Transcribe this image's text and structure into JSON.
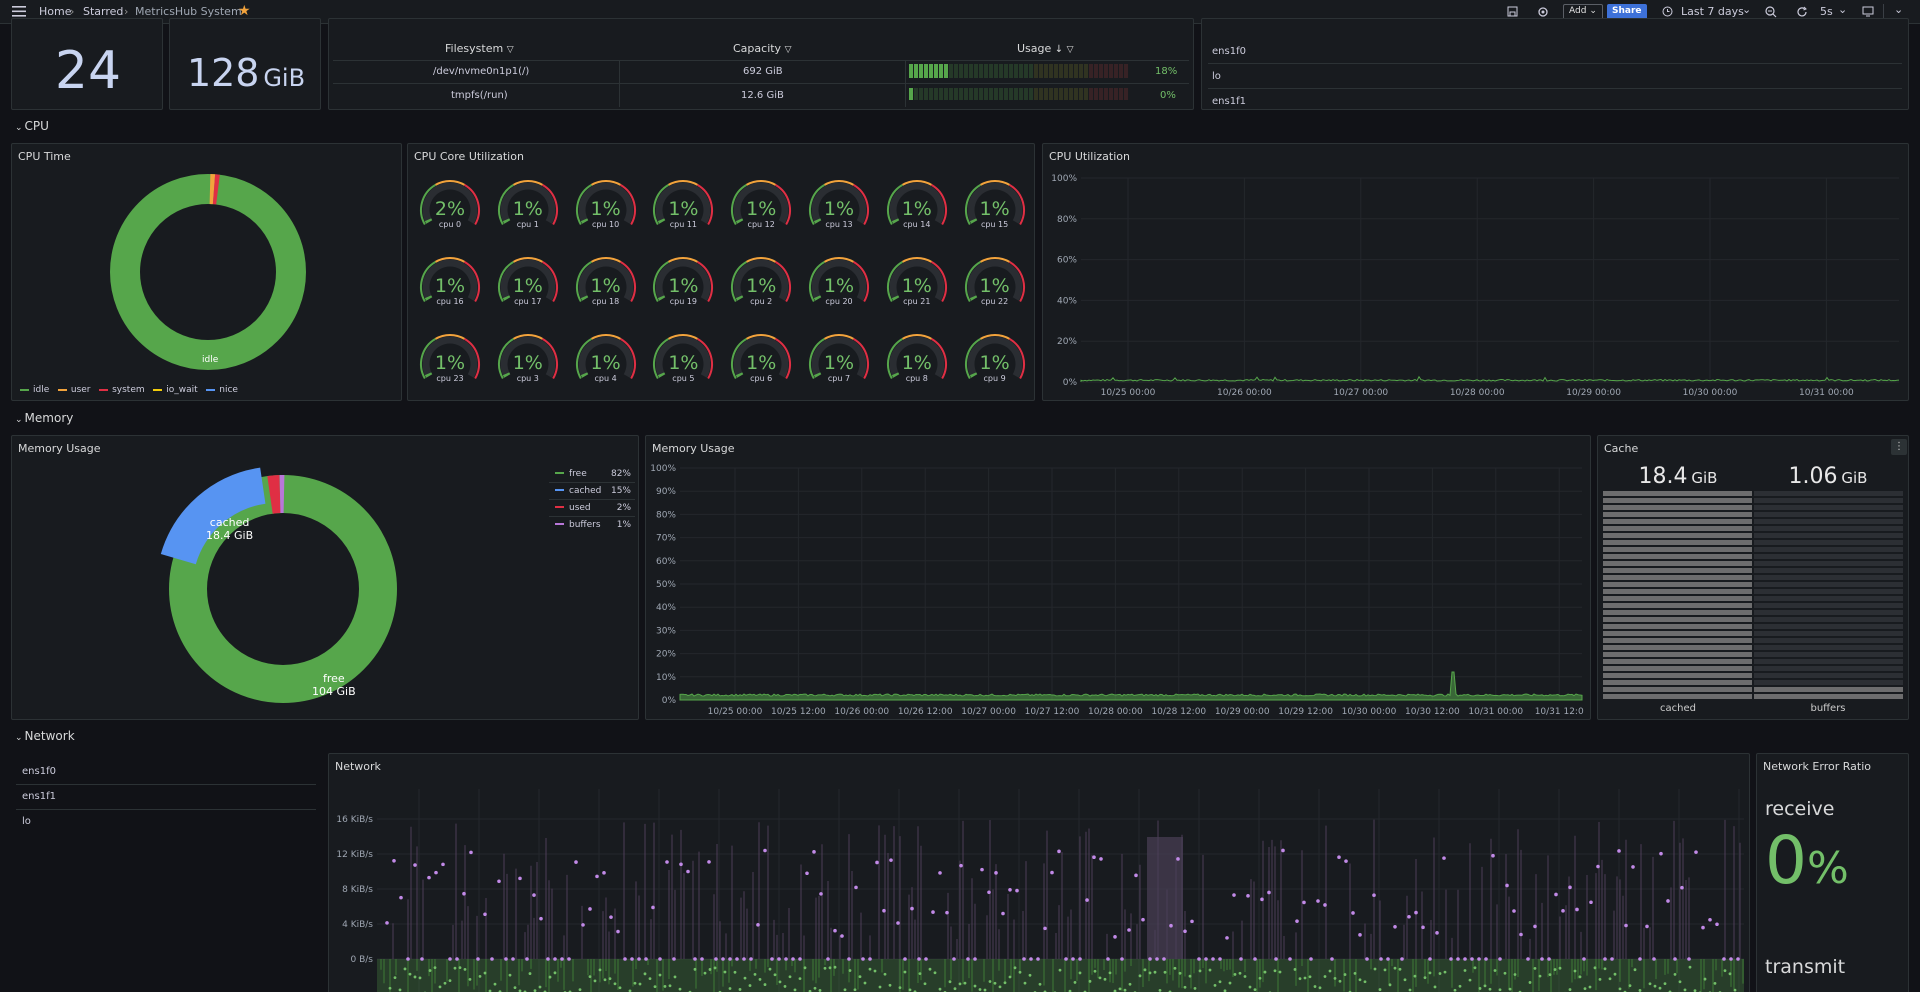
{
  "topbar": {
    "breadcrumb": [
      "Home",
      "Starred",
      "MetricsHub System"
    ],
    "add_label": "Add",
    "share_label": "Share",
    "time_range": "Last 7 days",
    "refresh": "5s"
  },
  "stats": {
    "cpu_count": "24",
    "ram_value": "128",
    "ram_unit": "GiB"
  },
  "filesystem": {
    "headers": [
      "Filesystem",
      "Capacity",
      "Usage"
    ],
    "rows": [
      {
        "fs": "/dev/nvme0n1p1(/)",
        "capacity": "692 GiB",
        "usage": "18%",
        "usage_frac": 0.18
      },
      {
        "fs": "tmpfs(/run)",
        "capacity": "12.6 GiB",
        "usage": "0%",
        "usage_frac": 0.0
      }
    ]
  },
  "top_interfaces": [
    "ens1f0",
    "lo",
    "ens1f1"
  ],
  "rows": {
    "cpu": "CPU",
    "memory": "Memory",
    "network": "Network"
  },
  "cpu_time": {
    "title": "CPU Time",
    "center_label": "idle",
    "legend": [
      "idle",
      "user",
      "system",
      "io_wait",
      "nice"
    ],
    "colors": [
      "#56a64b",
      "#f2a33c",
      "#e02f44",
      "#f2cc0c",
      "#5794f2"
    ]
  },
  "cpu_cores": {
    "title": "CPU Core Utilization",
    "gauges": [
      {
        "label": "cpu 0",
        "value": "2%"
      },
      {
        "label": "cpu 1",
        "value": "1%"
      },
      {
        "label": "cpu 10",
        "value": "1%"
      },
      {
        "label": "cpu 11",
        "value": "1%"
      },
      {
        "label": "cpu 12",
        "value": "1%"
      },
      {
        "label": "cpu 13",
        "value": "1%"
      },
      {
        "label": "cpu 14",
        "value": "1%"
      },
      {
        "label": "cpu 15",
        "value": "1%"
      },
      {
        "label": "cpu 16",
        "value": "1%"
      },
      {
        "label": "cpu 17",
        "value": "1%"
      },
      {
        "label": "cpu 18",
        "value": "1%"
      },
      {
        "label": "cpu 19",
        "value": "1%"
      },
      {
        "label": "cpu 2",
        "value": "1%"
      },
      {
        "label": "cpu 20",
        "value": "1%"
      },
      {
        "label": "cpu 21",
        "value": "1%"
      },
      {
        "label": "cpu 22",
        "value": "1%"
      },
      {
        "label": "cpu 23",
        "value": "1%"
      },
      {
        "label": "cpu 3",
        "value": "1%"
      },
      {
        "label": "cpu 4",
        "value": "1%"
      },
      {
        "label": "cpu 5",
        "value": "1%"
      },
      {
        "label": "cpu 6",
        "value": "1%"
      },
      {
        "label": "cpu 7",
        "value": "1%"
      },
      {
        "label": "cpu 8",
        "value": "1%"
      },
      {
        "label": "cpu 9",
        "value": "1%"
      }
    ]
  },
  "cpu_util": {
    "title": "CPU Utilization",
    "yticks": [
      "100%",
      "80%",
      "60%",
      "40%",
      "20%",
      "0%"
    ],
    "xticks": [
      "10/25 00:00",
      "10/26 00:00",
      "10/27 00:00",
      "10/28 00:00",
      "10/29 00:00",
      "10/30 00:00",
      "10/31 00:00"
    ]
  },
  "memory_pie": {
    "title": "Memory Usage",
    "label_cached": "cached",
    "label_cached_val": "18.4 GiB",
    "label_free": "free",
    "label_free_val": "104 GiB",
    "legend": [
      {
        "name": "free",
        "pct": "82%",
        "color": "#56a64b"
      },
      {
        "name": "cached",
        "pct": "15%",
        "color": "#5794f2"
      },
      {
        "name": "used",
        "pct": "2%",
        "color": "#e02f44"
      },
      {
        "name": "buffers",
        "pct": "1%",
        "color": "#b877d9"
      }
    ]
  },
  "memory_ts": {
    "title": "Memory Usage",
    "yticks": [
      "100%",
      "90%",
      "80%",
      "70%",
      "60%",
      "50%",
      "40%",
      "30%",
      "20%",
      "10%",
      "0%"
    ],
    "xticks": [
      "10/25 00:00",
      "10/25 12:00",
      "10/26 00:00",
      "10/26 12:00",
      "10/27 00:00",
      "10/27 12:00",
      "10/28 00:00",
      "10/28 12:00",
      "10/29 00:00",
      "10/29 12:00",
      "10/30 00:00",
      "10/30 12:00",
      "10/31 00:00",
      "10/31 12:0"
    ]
  },
  "cache": {
    "title": "Cache",
    "cached_val": "18.4",
    "buffers_val": "1.06",
    "unit": "GiB",
    "cached_label": "cached",
    "buffers_label": "buffers"
  },
  "net_interfaces": [
    "ens1f0",
    "ens1f1",
    "lo"
  ],
  "network": {
    "title": "Network",
    "yticks": [
      "16 KiB/s",
      "12 KiB/s",
      "8 KiB/s",
      "4 KiB/s",
      "0 B/s"
    ]
  },
  "net_error": {
    "title": "Network Error Ratio",
    "receive_label": "receive",
    "receive_value": "0",
    "receive_unit": "%",
    "transmit_label": "transmit"
  }
}
